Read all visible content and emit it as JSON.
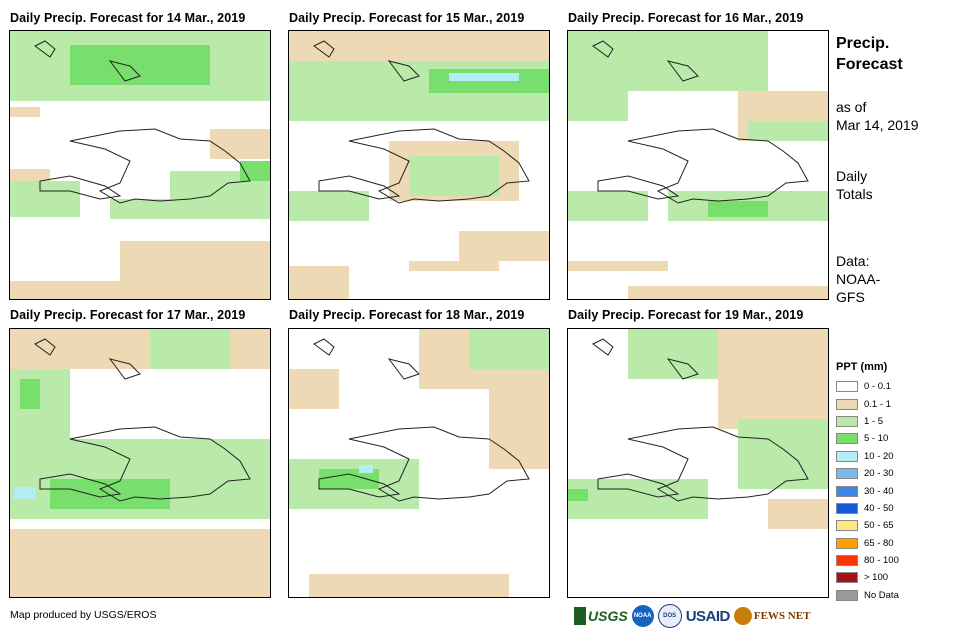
{
  "panels": [
    {
      "title": "Daily Precip. Forecast for 14 Mar., 2019"
    },
    {
      "title": "Daily Precip. Forecast for 15 Mar., 2019"
    },
    {
      "title": "Daily Precip. Forecast for 16 Mar., 2019"
    },
    {
      "title": "Daily Precip. Forecast for 17 Mar., 2019"
    },
    {
      "title": "Daily Precip. Forecast for 18 Mar., 2019"
    },
    {
      "title": "Daily Precip. Forecast for 19 Mar., 2019"
    }
  ],
  "sidebar": {
    "title_line1": "Precip.",
    "title_line2": "Forecast",
    "asof_line1": "as of",
    "asof_line2": "Mar 14, 2019",
    "totals_line1": "Daily",
    "totals_line2": "Totals",
    "data_line1": "Data:",
    "data_line2": "NOAA-",
    "data_line3": "GFS"
  },
  "legend": {
    "title": "PPT (mm)",
    "items": [
      {
        "label": "0 - 0.1",
        "color": "#ffffff"
      },
      {
        "label": "0.1 - 1",
        "color": "#eed9b5"
      },
      {
        "label": "1 - 5",
        "color": "#b9eaa9"
      },
      {
        "label": "5 - 10",
        "color": "#79df6c"
      },
      {
        "label": "10 - 20",
        "color": "#b3edf6"
      },
      {
        "label": "20 - 30",
        "color": "#7eb6ee"
      },
      {
        "label": "30 - 40",
        "color": "#3d87ea"
      },
      {
        "label": "40 - 50",
        "color": "#1659d6"
      },
      {
        "label": "50 - 65",
        "color": "#ffe784"
      },
      {
        "label": "65 - 80",
        "color": "#ffa000"
      },
      {
        "label": "80 - 100",
        "color": "#ff3300"
      },
      {
        "label": "> 100",
        "color": "#a61111"
      },
      {
        "label": "No Data",
        "color": "#9a9a9a"
      }
    ]
  },
  "credit": "Map produced by USGS/EROS",
  "logos": {
    "usgs": "USGS",
    "noaa": "NOAA",
    "dos": "DOS",
    "usaid": "USAID",
    "fews": "FEWS NET"
  }
}
